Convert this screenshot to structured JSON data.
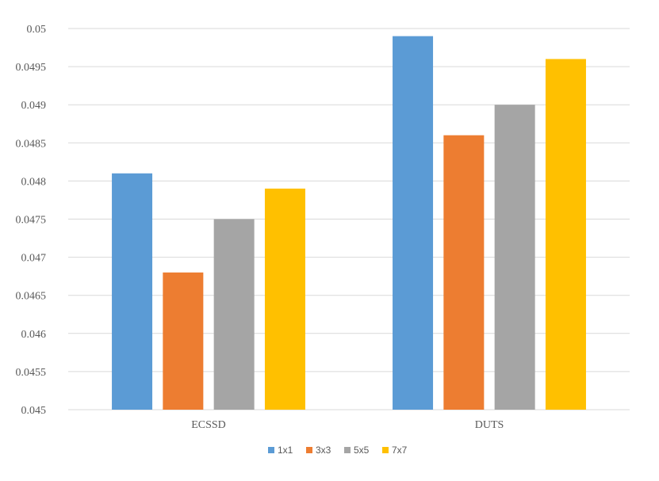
{
  "chart_data": {
    "type": "bar",
    "title": "",
    "xlabel": "",
    "ylabel": "",
    "categories": [
      "ECSSD",
      "DUTS"
    ],
    "series": [
      {
        "name": "1x1",
        "values": [
          0.0481,
          0.0499
        ],
        "color": "#5b9bd5"
      },
      {
        "name": "3x3",
        "values": [
          0.0468,
          0.0486
        ],
        "color": "#ed7d31"
      },
      {
        "name": "5x5",
        "values": [
          0.0475,
          0.049
        ],
        "color": "#a5a5a5"
      },
      {
        "name": "7x7",
        "values": [
          0.0479,
          0.0496
        ],
        "color": "#ffc000"
      }
    ],
    "ylim": [
      0.045,
      0.05
    ],
    "yticks": [
      "0.045",
      "0.0455",
      "0.046",
      "0.0465",
      "0.047",
      "0.0475",
      "0.048",
      "0.0485",
      "0.049",
      "0.0495",
      "0.05"
    ],
    "grid": true,
    "legend_position": "bottom"
  }
}
